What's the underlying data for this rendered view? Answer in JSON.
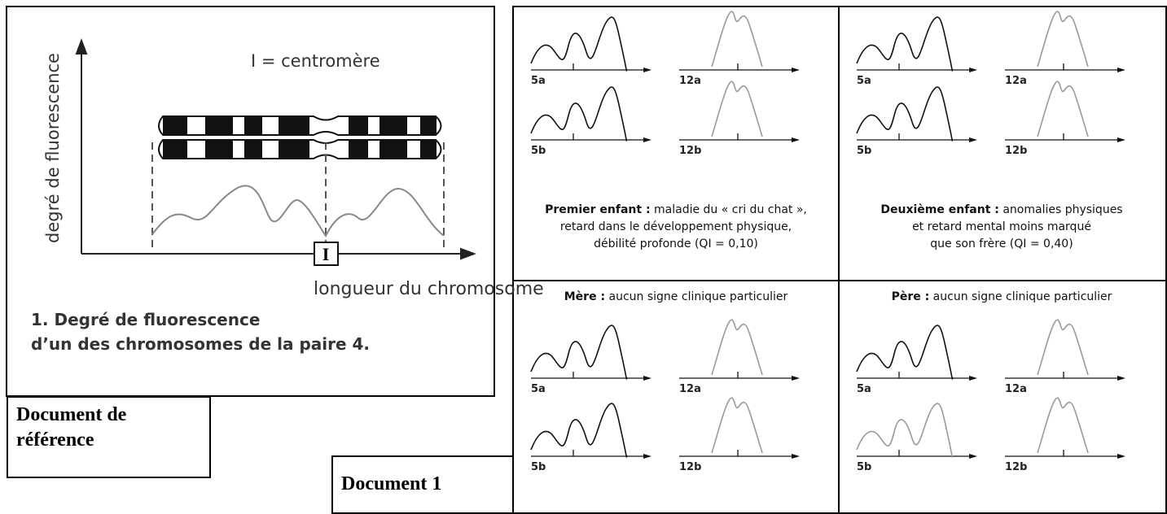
{
  "reference": {
    "y_axis_label": "degré de fluorescence",
    "legend": "I = centromère",
    "centromere_mark": "I",
    "x_axis_label": "longueur du chromosome",
    "caption": [
      "1. Degré de fluorescence",
      "d’un des chromosomes de la paire 4."
    ]
  },
  "reference_label": [
    "Document de",
    "référence"
  ],
  "document_label": "Document 1",
  "panels": [
    {
      "heading": "Premier enfant :",
      "description": [
        "maladie du « cri du chat »,",
        "retard dans le développement physique,",
        "débilité profonde (QI = 0,10)"
      ],
      "graphs": [
        "5a",
        "12a",
        "5b",
        "12b"
      ]
    },
    {
      "heading": "Deuxième enfant :",
      "description": [
        "anomalies physiques",
        "et retard mental moins marqué",
        "que son frère (QI = 0,40)"
      ],
      "graphs": [
        "5a",
        "12a",
        "5b",
        "12b"
      ]
    },
    {
      "heading": "Mère :",
      "description": [
        "aucun signe clinique particulier"
      ],
      "graphs": [
        "5a",
        "12a",
        "5b",
        "12b"
      ]
    },
    {
      "heading": "Père :",
      "description": [
        "aucun signe clinique particulier"
      ],
      "graphs": [
        "5a",
        "12a",
        "5b",
        "12b"
      ]
    }
  ]
}
